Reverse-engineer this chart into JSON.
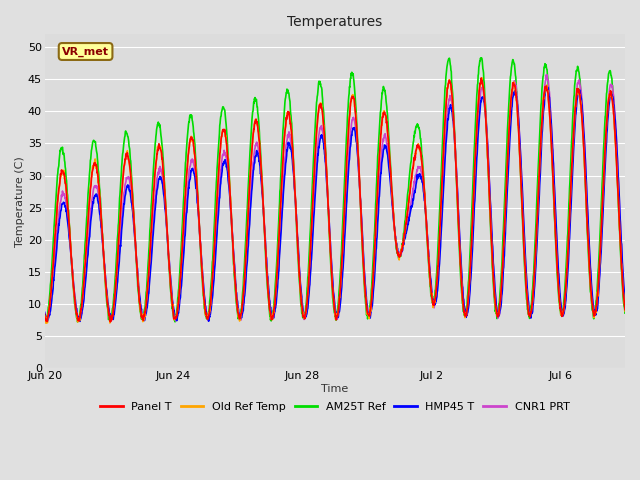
{
  "title": "Temperatures",
  "ylabel": "Temperature (C)",
  "xlabel": "Time",
  "annotation": "VR_met",
  "ylim": [
    0,
    52
  ],
  "yticks": [
    0,
    5,
    10,
    15,
    20,
    25,
    30,
    35,
    40,
    45,
    50
  ],
  "background_color": "#e0e0e0",
  "plot_bg_color": "#dcdcdc",
  "grid_color": "#ffffff",
  "series": {
    "panel_t": {
      "color": "#ff0000",
      "label": "Panel T",
      "lw": 1.2
    },
    "old_ref_temp": {
      "color": "#ffa500",
      "label": "Old Ref Temp",
      "lw": 1.2
    },
    "am25t_ref": {
      "color": "#00dd00",
      "label": "AM25T Ref",
      "lw": 1.2
    },
    "hmp45_t": {
      "color": "#0000ff",
      "label": "HMP45 T",
      "lw": 1.2
    },
    "cnr1_prt": {
      "color": "#cc44cc",
      "label": "CNR1 PRT",
      "lw": 1.2
    }
  },
  "xtick_dates": [
    "Jun 20",
    "Jun 24",
    "Jun 28",
    "Jul 2",
    "Jul 6"
  ],
  "xtick_positions": [
    0,
    4,
    8,
    12,
    16
  ],
  "num_days": 18.0,
  "xlim": [
    0,
    18
  ],
  "points_per_day": 96
}
